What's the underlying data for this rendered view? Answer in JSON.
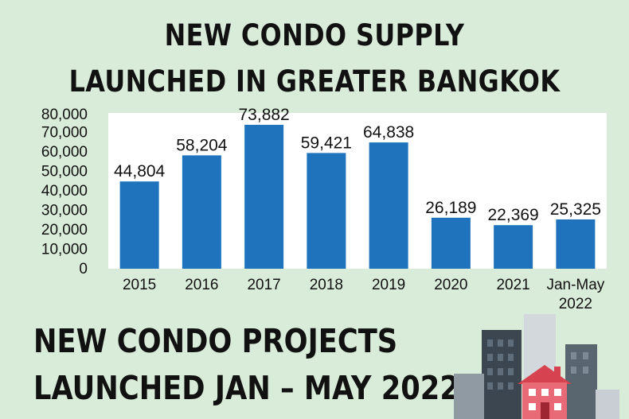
{
  "header": {
    "line1": "NEW CONDO SUPPLY",
    "line2": "LAUNCHED IN GREATER BANGKOK"
  },
  "footer": {
    "line1": "NEW CONDO PROJECTS",
    "line2": "LAUNCHED JAN – MAY 2022"
  },
  "colors": {
    "background": "#d9ecd9",
    "bar": "#1f73bd",
    "plot_bg": "#ffffff"
  },
  "chart_data": {
    "type": "bar",
    "title": "NEW CONDO SUPPLY LAUNCHED IN GREATER BANGKOK",
    "xlabel": "",
    "ylabel": "",
    "categories": [
      "2015",
      "2016",
      "2017",
      "2018",
      "2019",
      "2020",
      "2021",
      "Jan-May 2022"
    ],
    "category_lines": [
      [
        "2015"
      ],
      [
        "2016"
      ],
      [
        "2017"
      ],
      [
        "2018"
      ],
      [
        "2019"
      ],
      [
        "2020"
      ],
      [
        "2021"
      ],
      [
        "Jan-May",
        "2022"
      ]
    ],
    "values": [
      44804,
      58204,
      73882,
      59421,
      64838,
      26189,
      22369,
      25325
    ],
    "data_labels": [
      "44,804",
      "58,204",
      "73,882",
      "59,421",
      "64,838",
      "26,189",
      "22,369",
      "25,325"
    ],
    "yticks": [
      0,
      10000,
      20000,
      30000,
      40000,
      50000,
      60000,
      70000,
      80000
    ],
    "ytick_labels": [
      "0",
      "10,000",
      "20,000",
      "30,000",
      "40,000",
      "50,000",
      "60,000",
      "70,000",
      "80,000"
    ],
    "ylim": [
      0,
      80000
    ],
    "grid": false,
    "legend": "none"
  }
}
